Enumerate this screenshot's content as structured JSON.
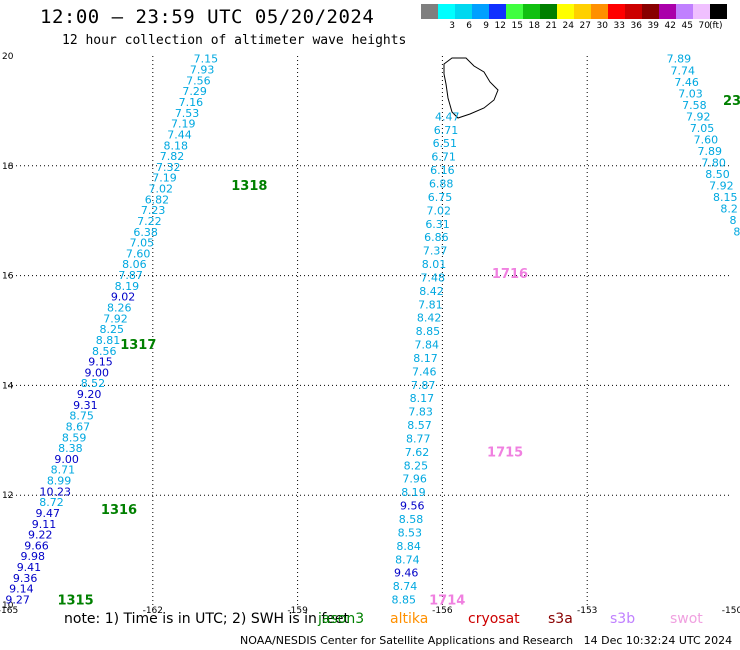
{
  "title": "12:00 – 23:59 UTC 05/20/2024",
  "subtitle": "12 hour collection of altimeter wave heights",
  "color_scale": {
    "unit": "(ft)",
    "bins": [
      {
        "label": "",
        "color": "#7f7f7f"
      },
      {
        "label": "3",
        "color": "#00ffff"
      },
      {
        "label": "6",
        "color": "#00d8f0"
      },
      {
        "label": "9",
        "color": "#00a0ff"
      },
      {
        "label": "12",
        "color": "#1030ff"
      },
      {
        "label": "15",
        "color": "#40ff40"
      },
      {
        "label": "18",
        "color": "#10c010"
      },
      {
        "label": "21",
        "color": "#008000"
      },
      {
        "label": "24",
        "color": "#ffff00"
      },
      {
        "label": "27",
        "color": "#ffd000"
      },
      {
        "label": "30",
        "color": "#ff9000"
      },
      {
        "label": "33",
        "color": "#ff0000"
      },
      {
        "label": "36",
        "color": "#cc0000"
      },
      {
        "label": "39",
        "color": "#880000"
      },
      {
        "label": "42",
        "color": "#aa00aa"
      },
      {
        "label": "45",
        "color": "#c080ff"
      },
      {
        "label": "70",
        "color": "#f0c0ff"
      },
      {
        "label": "",
        "color": "#000000"
      }
    ]
  },
  "map": {
    "lon_ticks": [
      "-165",
      "-162",
      "-159",
      "-156",
      "-153",
      "-150"
    ],
    "lat_ticks": [
      "10",
      "12",
      "14",
      "16",
      "18",
      "20"
    ],
    "lon_range": [
      -165,
      -150
    ],
    "lat_range": [
      10,
      20
    ],
    "grid": "dotted"
  },
  "colors": {
    "cyan_label": "#00a8e0",
    "blue_label": "#0000c8",
    "green_label": "#008000",
    "pink_label": "#f080e0"
  },
  "tracks": [
    {
      "color_key": "cyan",
      "values": [
        "7.15",
        "7.93",
        "7.56",
        "7.29",
        "7.16",
        "7.53",
        "7.19",
        "7.44",
        "8.18",
        "7.82",
        "7.32",
        "7.19",
        "7.02",
        "6.82",
        "7.23",
        "7.22",
        "6.38",
        "7.05",
        "7.60",
        "8.06",
        "7.87",
        "8.19",
        "9.02",
        "8.26",
        "7.92",
        "8.25",
        "8.81",
        "8.56",
        "9.15",
        "9.00",
        "8.52",
        "9.20",
        "9.31",
        "8.75",
        "8.67",
        "8.59",
        "8.38",
        "9.00",
        "8.71",
        "8.99",
        "10.23",
        "8.72",
        "9.47",
        "9.11",
        "9.22",
        "9.66",
        "9.98",
        "9.41",
        "9.36",
        "9.14",
        "9.27"
      ]
    },
    {
      "color_key": "cyan",
      "values": [
        "4.47",
        "6.71",
        "6.51",
        "6.71",
        "6.16",
        "6.88",
        "6.75",
        "7.02",
        "6.31",
        "6.86",
        "7.37",
        "8.01",
        "7.48",
        "8.42",
        "7.81",
        "8.42",
        "8.85",
        "7.84",
        "8.17",
        "7.46",
        "7.87",
        "8.17",
        "7.83",
        "8.57",
        "8.77",
        "7.62",
        "8.25",
        "7.96",
        "8.19",
        "9.56",
        "8.58",
        "8.53",
        "8.84",
        "8.74",
        "9.46",
        "8.74",
        "8.85"
      ]
    },
    {
      "color_key": "cyan",
      "values": [
        "7.89",
        "7.74",
        "7.46",
        "7.03",
        "7.58",
        "7.92",
        "7.05",
        "7.60",
        "7.89",
        "7.80",
        "8.50",
        "7.92",
        "8.15",
        "8.2",
        "8",
        "8"
      ]
    }
  ],
  "time_labels": [
    {
      "text": "1318",
      "color_key": "green"
    },
    {
      "text": "1317",
      "color_key": "green"
    },
    {
      "text": "1316",
      "color_key": "green"
    },
    {
      "text": "1315",
      "color_key": "green"
    },
    {
      "text": "1716",
      "color_key": "pink"
    },
    {
      "text": "1715",
      "color_key": "pink"
    },
    {
      "text": "1714",
      "color_key": "pink"
    },
    {
      "text": "23",
      "color_key": "green"
    }
  ],
  "note": "note: 1) Time is in UTC; 2) SWH is in feet",
  "satellites": [
    {
      "name": "jason3",
      "color": "#008000"
    },
    {
      "name": "altika",
      "color": "#ff9000"
    },
    {
      "name": "cryosat",
      "color": "#cc0000"
    },
    {
      "name": "s3a",
      "color": "#880000"
    },
    {
      "name": "s3b",
      "color": "#c080ff"
    },
    {
      "name": "swot",
      "color": "#f0a0e0"
    }
  ],
  "credit": "NOAA/NESDIS Center for Satellite Applications and Research",
  "timestamp": "14 Dec 10:32:24 UTC 2024"
}
